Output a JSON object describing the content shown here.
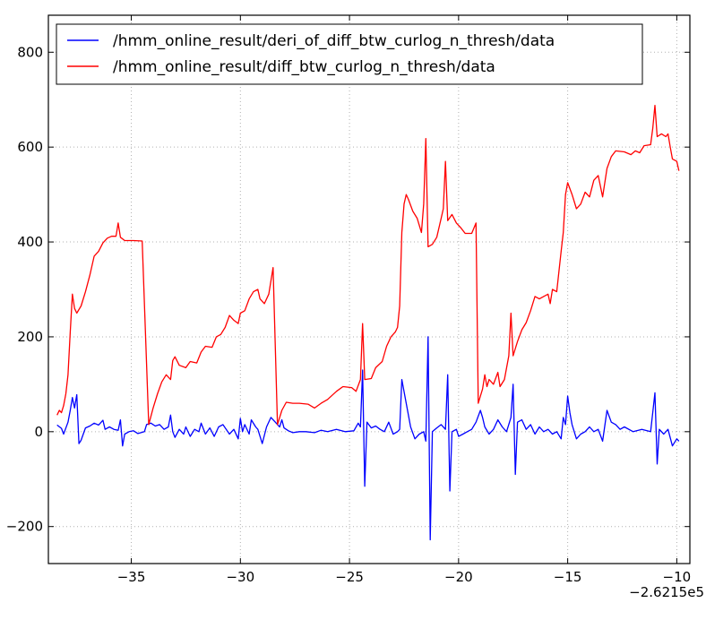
{
  "chart_data": {
    "type": "line",
    "title": "",
    "xlabel": "",
    "ylabel": "",
    "x_offset_label": "−2.6215e5",
    "xlim": [
      -38.8,
      -9.4
    ],
    "ylim": [
      -278,
      878
    ],
    "x_ticks": [
      -35,
      -30,
      -25,
      -20,
      -15,
      -10
    ],
    "x_tick_labels": [
      "−35",
      "−30",
      "−25",
      "−20",
      "−15",
      "−10"
    ],
    "y_ticks": [
      -200,
      0,
      200,
      400,
      600,
      800
    ],
    "y_tick_labels": [
      "−200",
      "0",
      "200",
      "400",
      "600",
      "800"
    ],
    "grid": true,
    "legend_position": "top-left",
    "series": [
      {
        "name": "/hmm_online_result/deri_of_diff_btw_curlog_n_thresh/data",
        "color": "#0000ff",
        "points": [
          [
            -38.4,
            14
          ],
          [
            -38.2,
            7
          ],
          [
            -38.1,
            -5
          ],
          [
            -37.9,
            20
          ],
          [
            -37.8,
            45
          ],
          [
            -37.7,
            72
          ],
          [
            -37.6,
            50
          ],
          [
            -37.5,
            78
          ],
          [
            -37.4,
            -25
          ],
          [
            -37.3,
            -18
          ],
          [
            -37.1,
            8
          ],
          [
            -36.9,
            12
          ],
          [
            -36.7,
            18
          ],
          [
            -36.5,
            14
          ],
          [
            -36.3,
            24
          ],
          [
            -36.2,
            5
          ],
          [
            -36.0,
            10
          ],
          [
            -35.8,
            5
          ],
          [
            -35.6,
            3
          ],
          [
            -35.5,
            25
          ],
          [
            -35.4,
            -30
          ],
          [
            -35.3,
            -5
          ],
          [
            -35.1,
            0
          ],
          [
            -34.9,
            2
          ],
          [
            -34.7,
            -4
          ],
          [
            -34.4,
            0
          ],
          [
            -34.3,
            15
          ],
          [
            -34.1,
            18
          ],
          [
            -33.9,
            12
          ],
          [
            -33.7,
            15
          ],
          [
            -33.5,
            5
          ],
          [
            -33.3,
            10
          ],
          [
            -33.2,
            35
          ],
          [
            -33.1,
            0
          ],
          [
            -33.0,
            -12
          ],
          [
            -32.8,
            5
          ],
          [
            -32.6,
            -5
          ],
          [
            -32.5,
            10
          ],
          [
            -32.3,
            -10
          ],
          [
            -32.1,
            5
          ],
          [
            -31.9,
            0
          ],
          [
            -31.8,
            18
          ],
          [
            -31.6,
            -5
          ],
          [
            -31.4,
            8
          ],
          [
            -31.2,
            -10
          ],
          [
            -31.0,
            10
          ],
          [
            -30.8,
            15
          ],
          [
            -30.5,
            -5
          ],
          [
            -30.3,
            5
          ],
          [
            -30.1,
            -15
          ],
          [
            -30.0,
            28
          ],
          [
            -29.9,
            0
          ],
          [
            -29.8,
            15
          ],
          [
            -29.6,
            -5
          ],
          [
            -29.5,
            25
          ],
          [
            -29.3,
            10
          ],
          [
            -29.2,
            5
          ],
          [
            -29.0,
            -25
          ],
          [
            -28.8,
            10
          ],
          [
            -28.6,
            30
          ],
          [
            -28.4,
            20
          ],
          [
            -28.2,
            10
          ],
          [
            -28.1,
            25
          ],
          [
            -28.0,
            8
          ],
          [
            -27.8,
            2
          ],
          [
            -27.6,
            -2
          ],
          [
            -27.3,
            0
          ],
          [
            -27.0,
            0
          ],
          [
            -26.6,
            -2
          ],
          [
            -26.3,
            3
          ],
          [
            -26.0,
            0
          ],
          [
            -25.6,
            5
          ],
          [
            -25.2,
            0
          ],
          [
            -24.8,
            2
          ],
          [
            -24.6,
            18
          ],
          [
            -24.5,
            10
          ],
          [
            -24.4,
            130
          ],
          [
            -24.3,
            -115
          ],
          [
            -24.2,
            20
          ],
          [
            -24.0,
            8
          ],
          [
            -23.8,
            12
          ],
          [
            -23.6,
            5
          ],
          [
            -23.4,
            0
          ],
          [
            -23.2,
            20
          ],
          [
            -23.0,
            -5
          ],
          [
            -22.8,
            0
          ],
          [
            -22.7,
            5
          ],
          [
            -22.6,
            110
          ],
          [
            -22.4,
            60
          ],
          [
            -22.2,
            10
          ],
          [
            -22.0,
            -15
          ],
          [
            -21.8,
            -5
          ],
          [
            -21.6,
            0
          ],
          [
            -21.5,
            -20
          ],
          [
            -21.4,
            200
          ],
          [
            -21.3,
            -228
          ],
          [
            -21.2,
            0
          ],
          [
            -21.0,
            8
          ],
          [
            -20.8,
            15
          ],
          [
            -20.6,
            5
          ],
          [
            -20.5,
            120
          ],
          [
            -20.4,
            -125
          ],
          [
            -20.3,
            0
          ],
          [
            -20.1,
            5
          ],
          [
            -20.0,
            -10
          ],
          [
            -19.8,
            -5
          ],
          [
            -19.6,
            0
          ],
          [
            -19.4,
            5
          ],
          [
            -19.2,
            20
          ],
          [
            -19.0,
            45
          ],
          [
            -18.9,
            30
          ],
          [
            -18.8,
            10
          ],
          [
            -18.6,
            -5
          ],
          [
            -18.4,
            5
          ],
          [
            -18.2,
            25
          ],
          [
            -18.0,
            10
          ],
          [
            -17.8,
            0
          ],
          [
            -17.6,
            30
          ],
          [
            -17.5,
            100
          ],
          [
            -17.4,
            -90
          ],
          [
            -17.3,
            20
          ],
          [
            -17.1,
            25
          ],
          [
            -16.9,
            5
          ],
          [
            -16.7,
            15
          ],
          [
            -16.5,
            -5
          ],
          [
            -16.3,
            10
          ],
          [
            -16.1,
            0
          ],
          [
            -15.9,
            5
          ],
          [
            -15.7,
            -5
          ],
          [
            -15.5,
            0
          ],
          [
            -15.3,
            -15
          ],
          [
            -15.2,
            30
          ],
          [
            -15.1,
            15
          ],
          [
            -15.0,
            75
          ],
          [
            -14.9,
            40
          ],
          [
            -14.8,
            15
          ],
          [
            -14.6,
            -15
          ],
          [
            -14.4,
            -5
          ],
          [
            -14.2,
            0
          ],
          [
            -14.0,
            10
          ],
          [
            -13.8,
            0
          ],
          [
            -13.6,
            5
          ],
          [
            -13.4,
            -20
          ],
          [
            -13.2,
            45
          ],
          [
            -13.0,
            20
          ],
          [
            -12.8,
            15
          ],
          [
            -12.6,
            5
          ],
          [
            -12.4,
            10
          ],
          [
            -12.0,
            0
          ],
          [
            -11.6,
            5
          ],
          [
            -11.2,
            0
          ],
          [
            -11.0,
            82
          ],
          [
            -10.9,
            -68
          ],
          [
            -10.8,
            5
          ],
          [
            -10.6,
            -5
          ],
          [
            -10.4,
            5
          ],
          [
            -10.2,
            -30
          ],
          [
            -10.0,
            -15
          ],
          [
            -9.9,
            -20
          ]
        ]
      },
      {
        "name": "/hmm_online_result/diff_btw_curlog_n_thresh/data",
        "color": "#ff0000",
        "points": [
          [
            -38.4,
            35
          ],
          [
            -38.3,
            45
          ],
          [
            -38.2,
            40
          ],
          [
            -38.1,
            55
          ],
          [
            -38.0,
            80
          ],
          [
            -37.9,
            120
          ],
          [
            -37.8,
            210
          ],
          [
            -37.7,
            290
          ],
          [
            -37.6,
            260
          ],
          [
            -37.5,
            250
          ],
          [
            -37.3,
            265
          ],
          [
            -37.1,
            295
          ],
          [
            -36.9,
            330
          ],
          [
            -36.7,
            370
          ],
          [
            -36.5,
            380
          ],
          [
            -36.3,
            398
          ],
          [
            -36.1,
            408
          ],
          [
            -35.9,
            412
          ],
          [
            -35.7,
            412
          ],
          [
            -35.6,
            440
          ],
          [
            -35.5,
            410
          ],
          [
            -35.3,
            403
          ],
          [
            -34.9,
            403
          ],
          [
            -34.5,
            402
          ],
          [
            -34.2,
            15
          ],
          [
            -34.0,
            50
          ],
          [
            -33.8,
            80
          ],
          [
            -33.6,
            105
          ],
          [
            -33.4,
            120
          ],
          [
            -33.2,
            110
          ],
          [
            -33.1,
            150
          ],
          [
            -33.0,
            158
          ],
          [
            -32.8,
            140
          ],
          [
            -32.5,
            135
          ],
          [
            -32.3,
            148
          ],
          [
            -32.0,
            145
          ],
          [
            -31.8,
            168
          ],
          [
            -31.6,
            180
          ],
          [
            -31.3,
            178
          ],
          [
            -31.1,
            200
          ],
          [
            -30.9,
            205
          ],
          [
            -30.7,
            220
          ],
          [
            -30.5,
            245
          ],
          [
            -30.3,
            235
          ],
          [
            -30.1,
            228
          ],
          [
            -30.0,
            250
          ],
          [
            -29.8,
            255
          ],
          [
            -29.6,
            280
          ],
          [
            -29.4,
            295
          ],
          [
            -29.2,
            300
          ],
          [
            -29.1,
            280
          ],
          [
            -28.9,
            270
          ],
          [
            -28.7,
            290
          ],
          [
            -28.5,
            346
          ],
          [
            -28.3,
            15
          ],
          [
            -28.1,
            45
          ],
          [
            -27.9,
            62
          ],
          [
            -27.6,
            60
          ],
          [
            -27.3,
            60
          ],
          [
            -26.9,
            58
          ],
          [
            -26.6,
            50
          ],
          [
            -26.3,
            60
          ],
          [
            -26.0,
            68
          ],
          [
            -25.6,
            85
          ],
          [
            -25.3,
            95
          ],
          [
            -24.9,
            93
          ],
          [
            -24.7,
            85
          ],
          [
            -24.5,
            110
          ],
          [
            -24.4,
            228
          ],
          [
            -24.3,
            110
          ],
          [
            -24.0,
            112
          ],
          [
            -23.8,
            135
          ],
          [
            -23.5,
            148
          ],
          [
            -23.3,
            180
          ],
          [
            -23.1,
            200
          ],
          [
            -22.9,
            210
          ],
          [
            -22.8,
            220
          ],
          [
            -22.7,
            265
          ],
          [
            -22.6,
            420
          ],
          [
            -22.5,
            480
          ],
          [
            -22.4,
            500
          ],
          [
            -22.3,
            490
          ],
          [
            -22.1,
            465
          ],
          [
            -21.9,
            450
          ],
          [
            -21.7,
            420
          ],
          [
            -21.6,
            480
          ],
          [
            -21.5,
            618
          ],
          [
            -21.4,
            390
          ],
          [
            -21.2,
            395
          ],
          [
            -21.0,
            410
          ],
          [
            -20.8,
            450
          ],
          [
            -20.7,
            470
          ],
          [
            -20.6,
            570
          ],
          [
            -20.5,
            445
          ],
          [
            -20.3,
            458
          ],
          [
            -20.1,
            440
          ],
          [
            -19.9,
            430
          ],
          [
            -19.7,
            418
          ],
          [
            -19.4,
            418
          ],
          [
            -19.2,
            440
          ],
          [
            -19.1,
            60
          ],
          [
            -19.0,
            75
          ],
          [
            -18.9,
            90
          ],
          [
            -18.8,
            120
          ],
          [
            -18.7,
            95
          ],
          [
            -18.6,
            110
          ],
          [
            -18.4,
            100
          ],
          [
            -18.2,
            125
          ],
          [
            -18.1,
            95
          ],
          [
            -17.9,
            110
          ],
          [
            -17.7,
            160
          ],
          [
            -17.6,
            250
          ],
          [
            -17.5,
            160
          ],
          [
            -17.3,
            190
          ],
          [
            -17.1,
            215
          ],
          [
            -16.9,
            230
          ],
          [
            -16.7,
            255
          ],
          [
            -16.5,
            285
          ],
          [
            -16.3,
            280
          ],
          [
            -16.1,
            285
          ],
          [
            -15.9,
            290
          ],
          [
            -15.8,
            270
          ],
          [
            -15.7,
            300
          ],
          [
            -15.5,
            295
          ],
          [
            -15.3,
            380
          ],
          [
            -15.2,
            420
          ],
          [
            -15.1,
            500
          ],
          [
            -15.0,
            525
          ],
          [
            -14.8,
            500
          ],
          [
            -14.6,
            470
          ],
          [
            -14.4,
            480
          ],
          [
            -14.2,
            505
          ],
          [
            -14.0,
            495
          ],
          [
            -13.8,
            530
          ],
          [
            -13.6,
            540
          ],
          [
            -13.4,
            495
          ],
          [
            -13.2,
            555
          ],
          [
            -13.0,
            580
          ],
          [
            -12.8,
            592
          ],
          [
            -12.4,
            590
          ],
          [
            -12.1,
            584
          ],
          [
            -11.9,
            592
          ],
          [
            -11.7,
            588
          ],
          [
            -11.5,
            603
          ],
          [
            -11.2,
            605
          ],
          [
            -11.1,
            640
          ],
          [
            -11.0,
            688
          ],
          [
            -10.9,
            622
          ],
          [
            -10.7,
            628
          ],
          [
            -10.5,
            622
          ],
          [
            -10.4,
            628
          ],
          [
            -10.3,
            600
          ],
          [
            -10.2,
            575
          ],
          [
            -10.0,
            570
          ],
          [
            -9.9,
            550
          ]
        ]
      }
    ]
  }
}
